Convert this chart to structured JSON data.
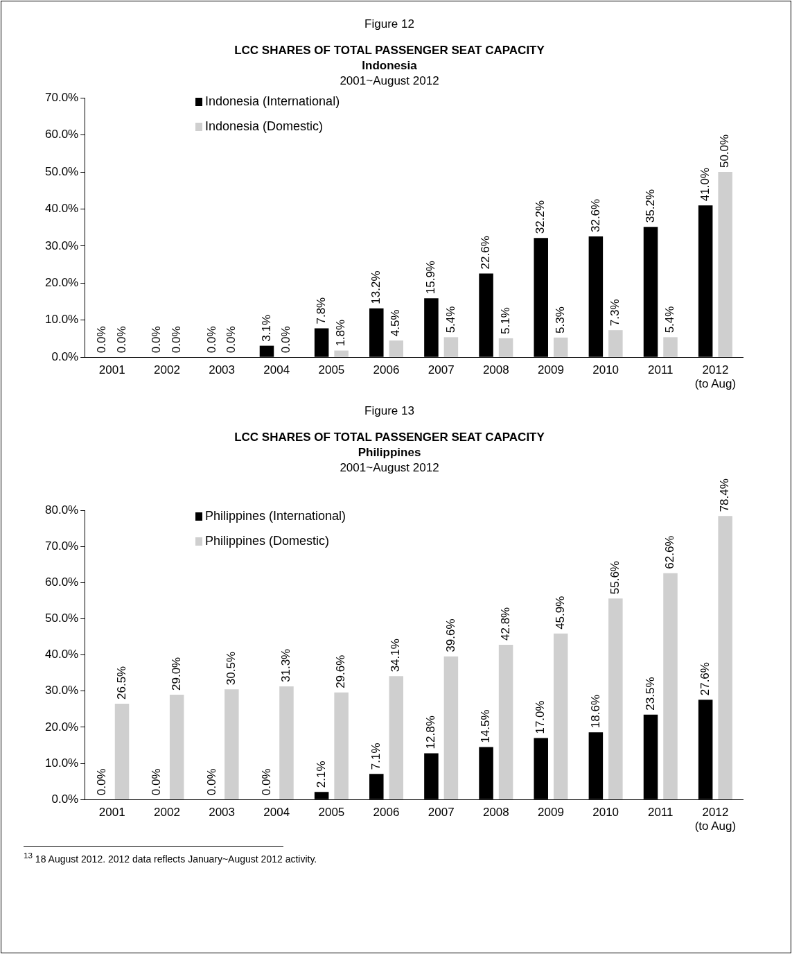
{
  "chart_data": [
    {
      "type": "bar",
      "title": "LCC SHARES OF TOTAL PASSENGER SEAT CAPACITY",
      "subtitle": "Indonesia",
      "annotations": [
        "Figure 12",
        "2001~August 2012"
      ],
      "categories": [
        "2001",
        "2002",
        "2003",
        "2004",
        "2005",
        "2006",
        "2007",
        "2008",
        "2009",
        "2010",
        "2011",
        "2012\n(to Aug)"
      ],
      "series": [
        {
          "name": "Indonesia (International)",
          "color": "#000000",
          "values": [
            0.0,
            0.0,
            0.0,
            3.1,
            7.8,
            13.2,
            15.9,
            22.6,
            32.2,
            32.6,
            35.2,
            41.0
          ],
          "value_labels": [
            "0.0%",
            "0.0%",
            "0.0%",
            "3.1%",
            "7.8%",
            "13.2%",
            "15.9%",
            "22.6%",
            "32.2%",
            "32.6%",
            "35.2%",
            "41.0%"
          ]
        },
        {
          "name": "Indonesia (Domestic)",
          "color": "#cfcfcf",
          "values": [
            0.0,
            0.0,
            0.0,
            0.0,
            1.8,
            4.5,
            5.4,
            5.1,
            5.3,
            7.3,
            5.4,
            50.0
          ],
          "value_labels": [
            "0.0%",
            "0.0%",
            "0.0%",
            "0.0%",
            "1.8%",
            "4.5%",
            "5.4%",
            "5.1%",
            "5.3%",
            "7.3%",
            "5.4%",
            "50.0%"
          ]
        }
      ],
      "ylim": [
        0,
        70
      ],
      "yticks": [
        {
          "value": 0,
          "label": "0.0%"
        },
        {
          "value": 10,
          "label": "10.0%"
        },
        {
          "value": 20,
          "label": "20.0%"
        },
        {
          "value": 30,
          "label": "30.0%"
        },
        {
          "value": 40,
          "label": "40.0%"
        },
        {
          "value": 50,
          "label": "50.0%"
        },
        {
          "value": 60,
          "label": "60.0%"
        },
        {
          "value": 70,
          "label": "70.0%"
        }
      ],
      "grid": false,
      "legend": "top left"
    },
    {
      "type": "bar",
      "title": "LCC SHARES OF TOTAL PASSENGER SEAT CAPACITY",
      "subtitle": "Philippines",
      "annotations": [
        "Figure 13",
        "2001~August 2012",
        "$^{13}$ 18 August 2012. 2012 data reflects January~August 2012 activity."
      ],
      "categories": [
        "2001",
        "2002",
        "2003",
        "2004",
        "2005",
        "2006",
        "2007",
        "2008",
        "2009",
        "2010",
        "2011",
        "2012\n(to Aug)"
      ],
      "series": [
        {
          "name": "Philippines (International)",
          "color": "#000000",
          "values": [
            0.0,
            0.0,
            0.0,
            0.0,
            2.1,
            7.1,
            12.8,
            14.5,
            17.0,
            18.6,
            23.5,
            27.6
          ],
          "value_labels": [
            "0.0%",
            "0.0%",
            "0.0%",
            "0.0%",
            "2.1%",
            "7.1%",
            "12.8%",
            "14.5%",
            "17.0%",
            "18.6%",
            "23.5%",
            "27.6%"
          ]
        },
        {
          "name": "Philippines (Domestic)",
          "color": "#cfcfcf",
          "values": [
            26.5,
            29.0,
            30.5,
            31.3,
            29.6,
            34.1,
            39.6,
            42.8,
            45.9,
            55.6,
            62.6,
            78.4
          ],
          "value_labels": [
            "26.5%",
            "29.0%",
            "30.5%",
            "31.3%",
            "29.6%",
            "34.1%",
            "39.6%",
            "42.8%",
            "45.9%",
            "55.6%",
            "62.6%",
            "78.4%"
          ]
        }
      ],
      "ylim": [
        0,
        80
      ],
      "yticks": [
        {
          "value": 0,
          "label": "0.0%"
        },
        {
          "value": 10,
          "label": "10.0%"
        },
        {
          "value": 20,
          "label": "20.0%"
        },
        {
          "value": 30,
          "label": "30.0%"
        },
        {
          "value": 40,
          "label": "40.0%"
        },
        {
          "value": 50,
          "label": "50.0%"
        },
        {
          "value": 60,
          "label": "60.0%"
        },
        {
          "value": 70,
          "label": "70.0%"
        },
        {
          "value": 80,
          "label": "80.0%"
        }
      ],
      "grid": false,
      "legend": "top left"
    }
  ]
}
